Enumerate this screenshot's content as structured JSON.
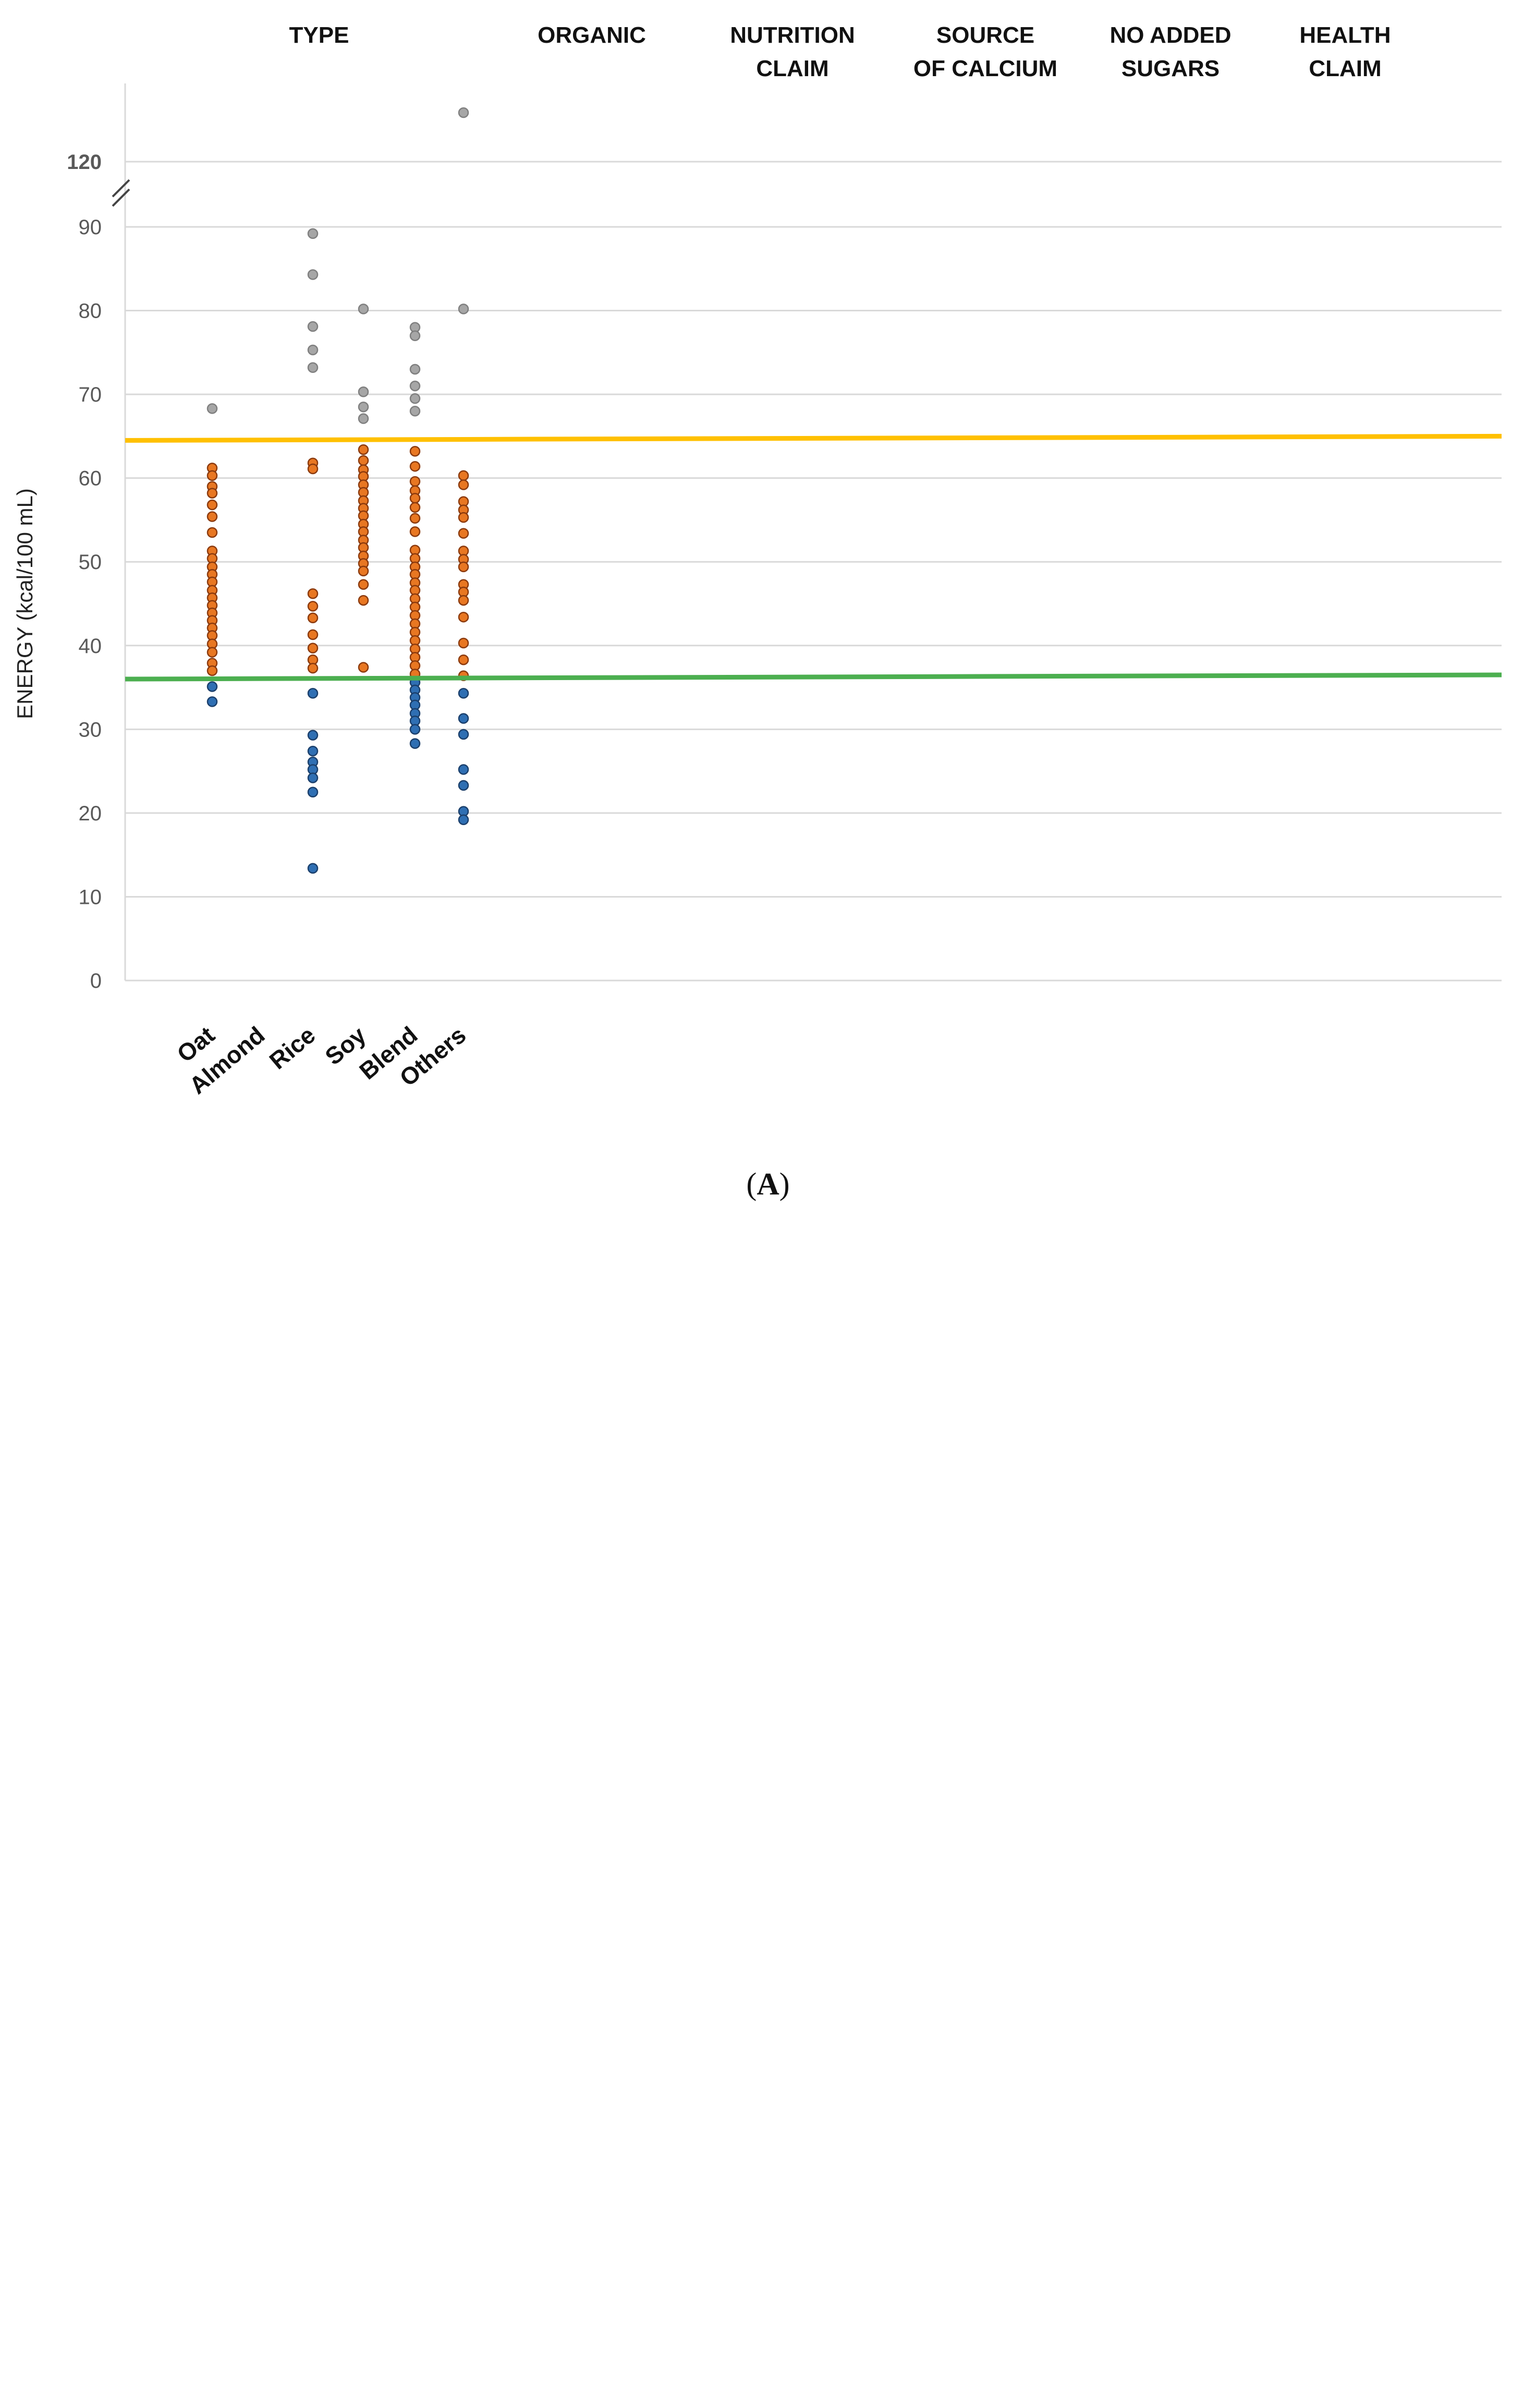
{
  "colors": {
    "above": "#E87722",
    "above_stroke": "#8B3A0E",
    "mid": "#E87722",
    "below": "#2F6FB3",
    "below_stroke": "#1B3F6B",
    "outlier": "#A6A6A6",
    "outlier_stroke": "#7F7F7F",
    "upper_line": "#FFC000",
    "lower_line": "#4CAF50",
    "grid": "#D9D9D9",
    "axis_text": "#595959"
  },
  "chart_data": [
    {
      "type": "scatter",
      "panel_label": "A",
      "ylabel": "ENERGY (kcal/100 mL)",
      "yticks": [
        0,
        10,
        20,
        30,
        40,
        50,
        60,
        70,
        80,
        90
      ],
      "ylim": [
        0,
        90
      ],
      "break_label": "120",
      "group_headers": [
        {
          "line1": "TYPE",
          "line2": ""
        },
        {
          "line1": "ORGANIC",
          "line2": ""
        },
        {
          "line1": "NUTRITION",
          "line2": "CLAIM"
        },
        {
          "line1": "SOURCE",
          "line2": "OF CALCIUM"
        },
        {
          "line1": "NO ADDED",
          "line2": "SUGARS"
        },
        {
          "line1": "HEALTH",
          "line2": "CLAIM"
        }
      ],
      "reference_lines": [
        {
          "name": "upper",
          "y_start": 64.5,
          "y_end": 65.0
        },
        {
          "name": "lower",
          "y_start": 36.0,
          "y_end": 36.5
        }
      ],
      "categories": [
        {
          "label": "Oat",
          "group": 0,
          "outliers": [
            68.3
          ],
          "values": [
            61.2,
            60.3,
            59.0,
            58.2,
            56.8,
            55.4,
            53.5,
            51.3,
            50.4,
            49.4,
            48.5,
            47.6,
            46.6,
            45.7,
            44.8,
            43.9,
            43.0,
            42.1,
            41.2,
            40.2,
            39.2,
            37.9,
            37.0,
            35.1,
            33.3
          ]
        },
        {
          "label": "Almond",
          "group": 0,
          "outliers": [],
          "values": []
        },
        {
          "label": "Rice",
          "group": 0,
          "outliers": [
            89.2,
            84.3,
            78.1,
            75.3,
            73.2
          ],
          "values": [
            61.8,
            61.1,
            46.2,
            44.7,
            43.3,
            41.3,
            39.7,
            38.3,
            37.3,
            34.3,
            29.3,
            27.4,
            26.1,
            25.2,
            24.2,
            22.5,
            13.4
          ]
        },
        {
          "label": "Soy",
          "group": 0,
          "outliers": [
            80.2,
            70.3,
            68.5,
            67.1
          ],
          "values": [
            63.4,
            62.1,
            61.0,
            60.2,
            59.2,
            58.3,
            57.3,
            56.4,
            55.5,
            54.5,
            53.6,
            52.6,
            51.7,
            50.7,
            49.8,
            48.9,
            47.3,
            45.4,
            37.4
          ]
        },
        {
          "label": "Blend",
          "group": 0,
          "outliers": [
            78.0,
            77.0,
            73.0,
            71.0,
            69.5,
            68.0
          ],
          "values": [
            63.2,
            61.4,
            59.6,
            58.5,
            57.6,
            56.5,
            55.2,
            53.6,
            51.4,
            50.4,
            49.4,
            48.5,
            47.5,
            46.6,
            45.6,
            44.6,
            43.6,
            42.6,
            41.6,
            40.6,
            39.6,
            38.6,
            37.6,
            36.6,
            35.6,
            34.7,
            33.8,
            32.9,
            31.9,
            31.0,
            30.0,
            28.3
          ]
        },
        {
          "label": "Others",
          "group": 0,
          "outliers": [
            120,
            80.2
          ],
          "values": [
            60.3,
            59.2,
            57.2,
            56.2,
            55.3,
            53.4,
            51.3,
            50.3,
            49.4,
            47.3,
            46.4,
            45.4,
            43.4,
            40.3,
            38.3,
            36.4,
            34.3,
            31.3,
            29.4,
            25.2,
            23.3,
            20.2,
            19.2
          ]
        }
      ]
    }
  ]
}
